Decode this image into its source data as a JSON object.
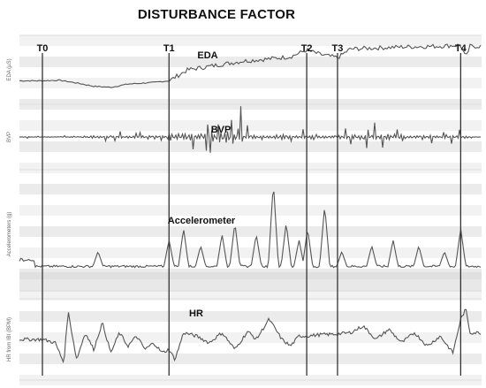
{
  "title": "DISTURBANCE FACTOR",
  "chart_data": {
    "type": "line",
    "title": "DISTURBANCE FACTOR",
    "markers": [
      {
        "label": "T0",
        "x": 0.0
      },
      {
        "label": "T1",
        "x": 0.296
      },
      {
        "label": "T2",
        "x": 0.618
      },
      {
        "label": "T3",
        "x": 0.69
      },
      {
        "label": "T4",
        "x": 0.978
      }
    ],
    "panels": [
      {
        "name": "EDA",
        "ylabel": "EDA (µS)",
        "kind": "smooth",
        "points": [
          [
            0,
            0.3
          ],
          [
            0.04,
            0.31
          ],
          [
            0.08,
            0.26
          ],
          [
            0.12,
            0.2
          ],
          [
            0.16,
            0.18
          ],
          [
            0.2,
            0.24
          ],
          [
            0.26,
            0.27
          ],
          [
            0.296,
            0.3
          ],
          [
            0.34,
            0.5
          ],
          [
            0.38,
            0.55
          ],
          [
            0.42,
            0.6
          ],
          [
            0.47,
            0.66
          ],
          [
            0.53,
            0.7
          ],
          [
            0.58,
            0.74
          ],
          [
            0.618,
            0.86
          ],
          [
            0.65,
            0.78
          ],
          [
            0.69,
            0.72
          ],
          [
            0.72,
            0.88
          ],
          [
            0.78,
            0.9
          ],
          [
            0.85,
            0.92
          ],
          [
            0.92,
            0.93
          ],
          [
            0.978,
            0.95
          ],
          [
            0.99,
            0.72
          ],
          [
            1.0,
            0.93
          ]
        ]
      },
      {
        "name": "BVP",
        "ylabel": "BVP",
        "kind": "oscillation",
        "bursts": [
          {
            "start": 0.0,
            "end": 0.12,
            "amp": 0.06
          },
          {
            "start": 0.12,
            "end": 0.296,
            "amp": 0.18
          },
          {
            "start": 0.296,
            "end": 0.38,
            "amp": 0.55
          },
          {
            "start": 0.38,
            "end": 0.47,
            "amp": 0.9
          },
          {
            "start": 0.47,
            "end": 0.58,
            "amp": 0.35
          },
          {
            "start": 0.58,
            "end": 0.72,
            "amp": 0.25
          },
          {
            "start": 0.72,
            "end": 0.84,
            "amp": 0.4
          },
          {
            "start": 0.84,
            "end": 1.0,
            "amp": 0.22
          }
        ]
      },
      {
        "name": "Accelerometer",
        "ylabel": "Accelerometers (g)",
        "kind": "spikes",
        "baseline": 0.22,
        "spikes": [
          [
            0.13,
            0.35
          ],
          [
            0.296,
            0.45
          ],
          [
            0.33,
            0.55
          ],
          [
            0.37,
            0.4
          ],
          [
            0.42,
            0.5
          ],
          [
            0.45,
            0.6
          ],
          [
            0.5,
            0.5
          ],
          [
            0.54,
            0.95
          ],
          [
            0.57,
            0.6
          ],
          [
            0.6,
            0.45
          ],
          [
            0.62,
            0.55
          ],
          [
            0.66,
            0.75
          ],
          [
            0.7,
            0.35
          ],
          [
            0.77,
            0.4
          ],
          [
            0.82,
            0.45
          ],
          [
            0.88,
            0.4
          ],
          [
            0.94,
            0.35
          ],
          [
            0.978,
            0.55
          ]
        ]
      },
      {
        "name": "HR",
        "ylabel": "HR from IBI (BPM)",
        "kind": "wave",
        "points": [
          [
            0,
            0.5
          ],
          [
            0.03,
            0.45
          ],
          [
            0.05,
            0.15
          ],
          [
            0.06,
            0.92
          ],
          [
            0.08,
            0.2
          ],
          [
            0.1,
            0.6
          ],
          [
            0.12,
            0.35
          ],
          [
            0.14,
            0.75
          ],
          [
            0.16,
            0.3
          ],
          [
            0.18,
            0.6
          ],
          [
            0.2,
            0.4
          ],
          [
            0.22,
            0.55
          ],
          [
            0.24,
            0.35
          ],
          [
            0.26,
            0.45
          ],
          [
            0.28,
            0.3
          ],
          [
            0.296,
            0.35
          ],
          [
            0.31,
            0.2
          ],
          [
            0.33,
            0.6
          ],
          [
            0.36,
            0.55
          ],
          [
            0.39,
            0.45
          ],
          [
            0.42,
            0.6
          ],
          [
            0.45,
            0.35
          ],
          [
            0.48,
            0.62
          ],
          [
            0.5,
            0.5
          ],
          [
            0.53,
            0.8
          ],
          [
            0.56,
            0.5
          ],
          [
            0.58,
            0.4
          ],
          [
            0.6,
            0.55
          ],
          [
            0.618,
            0.55
          ],
          [
            0.65,
            0.57
          ],
          [
            0.69,
            0.58
          ],
          [
            0.72,
            0.6
          ],
          [
            0.75,
            0.7
          ],
          [
            0.78,
            0.5
          ],
          [
            0.81,
            0.65
          ],
          [
            0.84,
            0.45
          ],
          [
            0.87,
            0.6
          ],
          [
            0.9,
            0.4
          ],
          [
            0.93,
            0.55
          ],
          [
            0.96,
            0.3
          ],
          [
            0.978,
            0.8
          ],
          [
            0.99,
            0.95
          ],
          [
            1.0,
            0.6
          ]
        ]
      }
    ]
  }
}
